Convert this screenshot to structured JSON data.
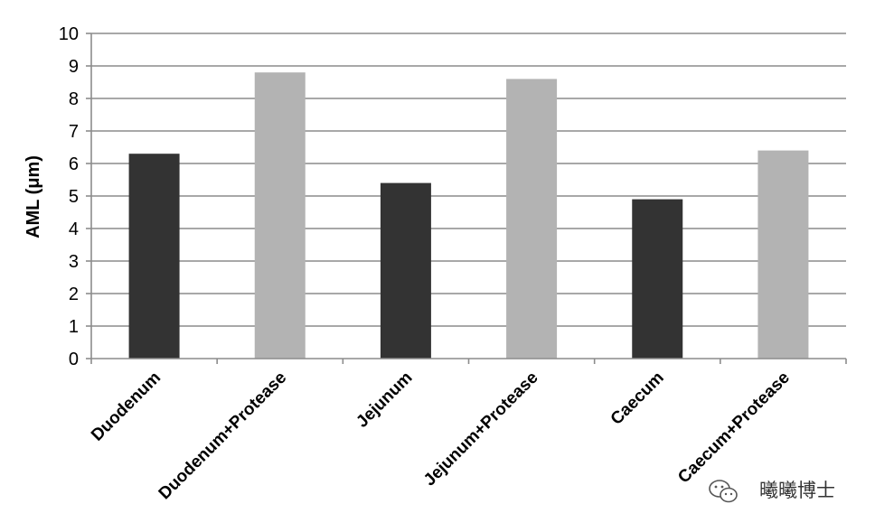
{
  "chart_data": {
    "type": "bar",
    "categories": [
      "Duodenum",
      "Duodenum+Protease",
      "Jejunum",
      "Jejunum+Protease",
      "Caecum",
      "Caecum+Protease"
    ],
    "values": [
      6.3,
      8.8,
      5.4,
      8.6,
      4.9,
      6.4
    ],
    "bar_colors": [
      "#333333",
      "#b3b3b3",
      "#333333",
      "#b3b3b3",
      "#333333",
      "#b3b3b3"
    ],
    "title": "",
    "xlabel": "",
    "ylabel": "AML (μm)",
    "ylim": [
      0,
      10
    ],
    "yticks": [
      "0",
      "1",
      "2",
      "3",
      "4",
      "5",
      "6",
      "7",
      "8",
      "9",
      "10"
    ],
    "grid": true,
    "gridline_color": "#8c8c8c",
    "legend": "none"
  },
  "watermark": {
    "text": "曦曦博士",
    "icon": "wechat-icon"
  }
}
